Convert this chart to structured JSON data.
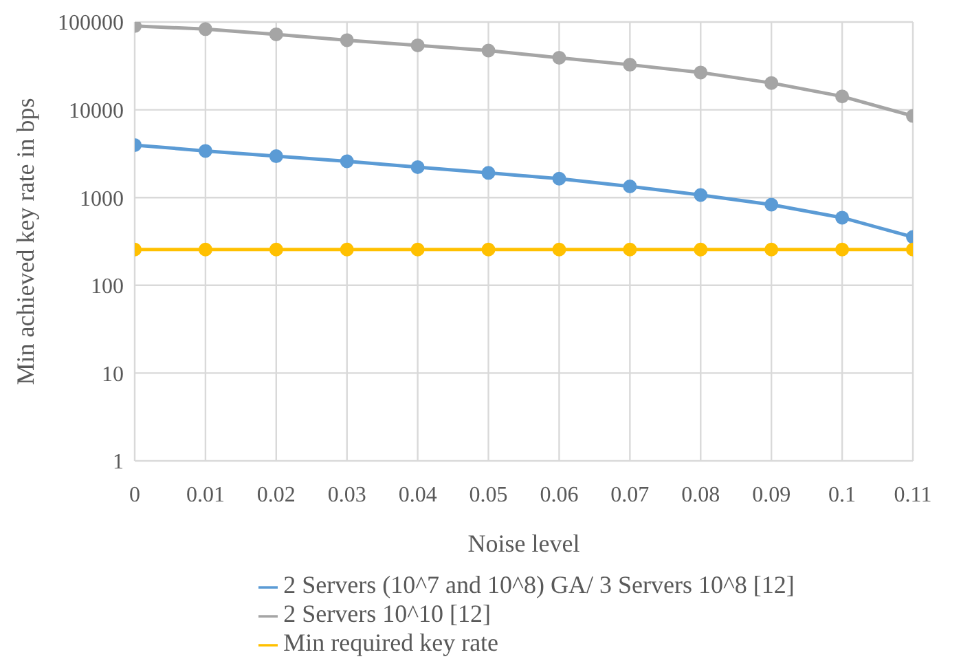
{
  "chart_data": {
    "type": "line",
    "xlabel": "Noise level",
    "ylabel": "Min achieved key rate in bps",
    "x": [
      0,
      0.01,
      0.02,
      0.03,
      0.04,
      0.05,
      0.06,
      0.07,
      0.08,
      0.09,
      0.1,
      0.11
    ],
    "xlim": [
      0,
      0.11
    ],
    "xticks": [
      0,
      0.01,
      0.02,
      0.03,
      0.04,
      0.05,
      0.06,
      0.07,
      0.08,
      0.09,
      0.1,
      0.11
    ],
    "ylim": [
      1,
      100000
    ],
    "yticks": [
      1,
      10,
      100,
      1000,
      10000,
      100000
    ],
    "log": "y",
    "grid": true,
    "legend": "bottom",
    "marker": "circle",
    "line_style": "solid",
    "series": [
      {
        "name": "2 Servers (10^7 and 10^8) GA/ 3 Servers 10^8 [12]",
        "color": "#5b9bd5",
        "values": [
          3960,
          3400,
          2960,
          2590,
          2220,
          1910,
          1640,
          1340,
          1070,
          830,
          590,
          355
        ]
      },
      {
        "name": "2 Servers 10^10 [12]",
        "color": "#a5a5a5",
        "values": [
          90000,
          83000,
          72400,
          62100,
          54200,
          47300,
          39200,
          32600,
          26600,
          20200,
          14200,
          8500
        ]
      },
      {
        "name": "Min required key rate",
        "color": "#ffc000",
        "values": [
          256,
          256,
          256,
          256,
          256,
          256,
          256,
          256,
          256,
          256,
          256,
          256
        ]
      }
    ]
  }
}
